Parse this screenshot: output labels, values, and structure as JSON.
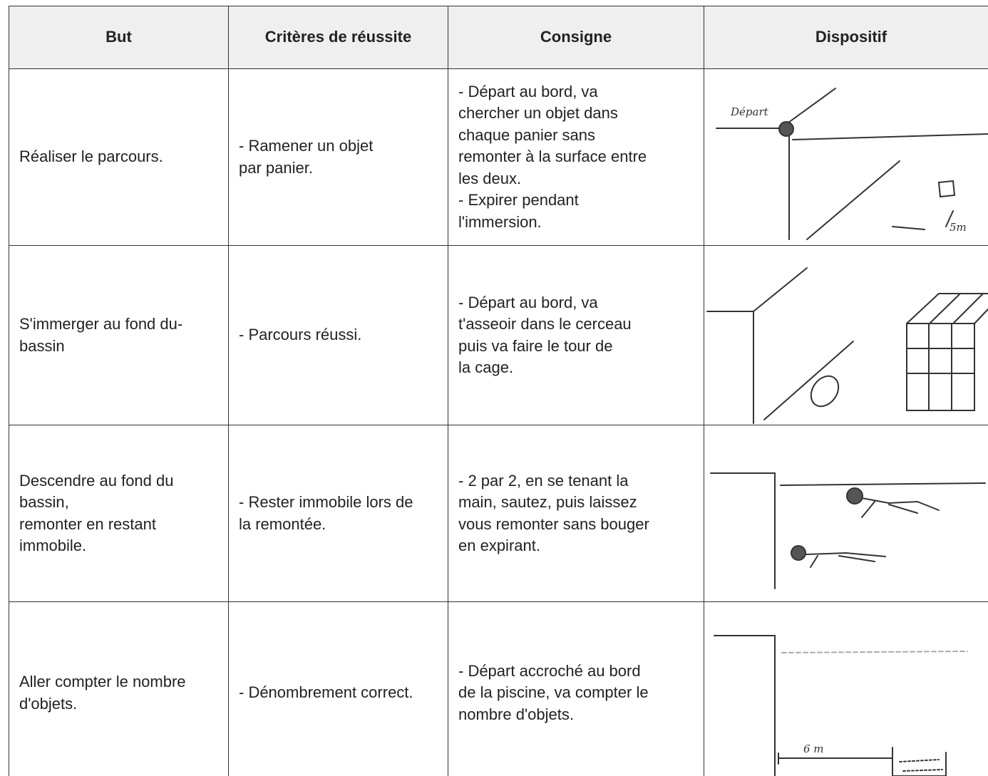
{
  "table": {
    "header": [
      "But",
      "Critères de réussite",
      "Consigne",
      "Dispositif"
    ],
    "rows": [
      [
        [
          "Réaliser le parcours."
        ],
        [
          "- Ramener un objet",
          "par panier."
        ],
        [
          "- Départ au bord, va",
          "chercher un objet dans",
          "chaque panier sans",
          "remonter à la surface entre",
          "les deux.",
          "- Expirer pendant",
          "l'immersion."
        ]
      ],
      [
        [
          "S'immerger au fond du-",
          "bassin"
        ],
        [
          "- Parcours réussi."
        ],
        [
          "- Départ au bord, va",
          "t'asseoir dans le cerceau",
          "puis va faire le tour de",
          "la cage."
        ]
      ],
      [
        [
          "Descendre au fond du",
          "bassin,",
          "remonter en restant",
          "immobile."
        ],
        [
          "- Rester immobile lors de",
          "la remontée."
        ],
        [
          "- 2 par 2, en se tenant la",
          "main, sautez, puis laissez",
          "vous remonter sans bouger",
          "en expirant."
        ]
      ],
      [
        [
          "Aller compter le nombre",
          "d'objets."
        ],
        [
          "- Dénombrement correct."
        ],
        [
          "- Départ accroché au bord",
          "de la piscine, va compter le",
          "nombre d'objets."
        ]
      ]
    ]
  },
  "sketch_labels": [
    "Départ",
    "5m",
    "6 m"
  ]
}
